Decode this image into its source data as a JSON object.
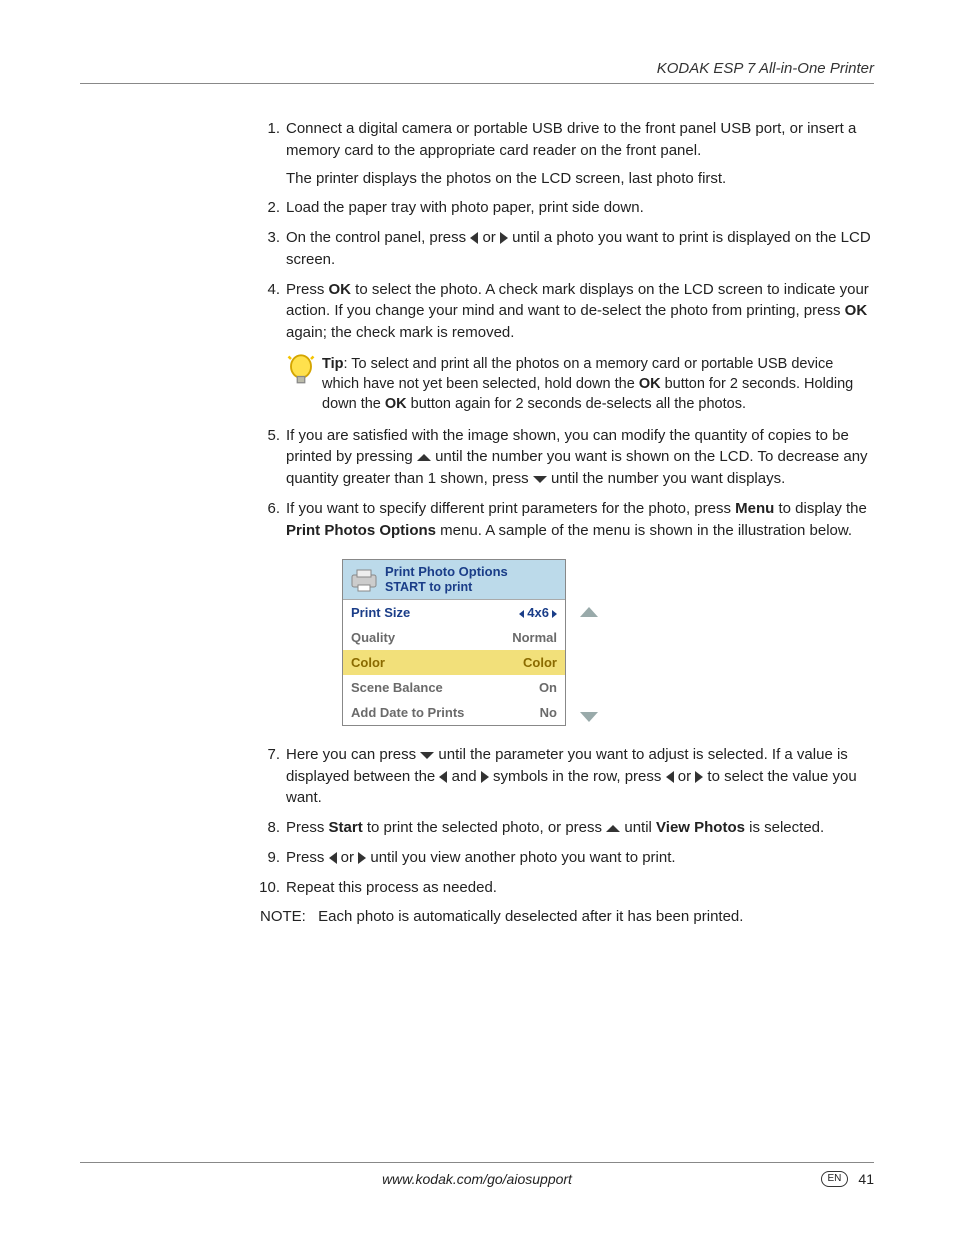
{
  "header": {
    "title": "KODAK ESP 7 All-in-One Printer"
  },
  "steps": [
    {
      "n": "1.",
      "paras": [
        "Connect a digital camera or portable USB drive to the front panel USB port, or insert a memory card to the appropriate card reader on the front panel.",
        "The printer displays the photos on the LCD screen, last photo first."
      ]
    },
    {
      "n": "2.",
      "paras": [
        "Load the paper tray with photo paper, print side down."
      ]
    },
    {
      "n": "3.",
      "segments": [
        {
          "t": "text",
          "v": "On the control panel, press "
        },
        {
          "t": "icon",
          "v": "left"
        },
        {
          "t": "text",
          "v": " or "
        },
        {
          "t": "icon",
          "v": "right"
        },
        {
          "t": "text",
          "v": " until a photo you want to print is displayed on the LCD screen."
        }
      ]
    },
    {
      "n": "4.",
      "segments": [
        {
          "t": "text",
          "v": "Press "
        },
        {
          "t": "bold",
          "v": "OK"
        },
        {
          "t": "text",
          "v": " to select the photo. A check mark displays on the LCD screen to indicate your action. If you change your mind and want to de-select the photo from printing, press "
        },
        {
          "t": "bold",
          "v": "OK"
        },
        {
          "t": "text",
          "v": " again; the check mark is removed."
        }
      ],
      "tip": {
        "label": "Tip",
        "segments": [
          {
            "t": "text",
            "v": ": To select and print all the photos on a memory card or portable USB device which have not yet been selected, hold down the "
          },
          {
            "t": "bold",
            "v": "OK"
          },
          {
            "t": "text",
            "v": " button for 2 seconds. Holding down the "
          },
          {
            "t": "bold",
            "v": "OK"
          },
          {
            "t": "text",
            "v": " button again for 2 seconds de-selects all the photos."
          }
        ]
      }
    },
    {
      "n": "5.",
      "segments": [
        {
          "t": "text",
          "v": "If you are satisfied with the image shown, you can modify the quantity of copies to be printed by pressing "
        },
        {
          "t": "icon",
          "v": "up"
        },
        {
          "t": "text",
          "v": " until the number you want is shown on the LCD. To decrease any quantity greater than 1 shown, press "
        },
        {
          "t": "icon",
          "v": "down"
        },
        {
          "t": "text",
          "v": " until the number you want displays."
        }
      ]
    },
    {
      "n": "6.",
      "segments": [
        {
          "t": "text",
          "v": "If you want to specify different print parameters for the photo, press "
        },
        {
          "t": "bold",
          "v": "Menu"
        },
        {
          "t": "text",
          "v": " to display the "
        },
        {
          "t": "bold",
          "v": "Print Photos Options"
        },
        {
          "t": "text",
          "v": " menu. A sample of the menu is shown in the illustration below."
        }
      ]
    },
    {
      "n": "7.",
      "segments": [
        {
          "t": "text",
          "v": "Here you can press "
        },
        {
          "t": "icon",
          "v": "down"
        },
        {
          "t": "text",
          "v": " until the parameter you want to adjust is selected. If a value is displayed between the "
        },
        {
          "t": "icon",
          "v": "left"
        },
        {
          "t": "text",
          "v": " and "
        },
        {
          "t": "icon",
          "v": "right"
        },
        {
          "t": "text",
          "v": " symbols in the row, press "
        },
        {
          "t": "icon",
          "v": "left"
        },
        {
          "t": "text",
          "v": " or "
        },
        {
          "t": "icon",
          "v": "right"
        },
        {
          "t": "text",
          "v": " to select the value you want."
        }
      ]
    },
    {
      "n": "8.",
      "segments": [
        {
          "t": "text",
          "v": "Press "
        },
        {
          "t": "bold",
          "v": "Start"
        },
        {
          "t": "text",
          "v": " to print the selected photo, or press "
        },
        {
          "t": "icon",
          "v": "up"
        },
        {
          "t": "text",
          "v": " until "
        },
        {
          "t": "bold",
          "v": "View Photos"
        },
        {
          "t": "text",
          "v": " is selected."
        }
      ]
    },
    {
      "n": "9.",
      "segments": [
        {
          "t": "text",
          "v": "Press "
        },
        {
          "t": "icon",
          "v": "left"
        },
        {
          "t": "text",
          "v": " or "
        },
        {
          "t": "icon",
          "v": "right"
        },
        {
          "t": "text",
          "v": " until you view another photo you want to print."
        }
      ]
    },
    {
      "n": "10.",
      "paras": [
        "Repeat this process as needed."
      ]
    }
  ],
  "menu": {
    "title1": "Print Photo Options",
    "title2": "START to print",
    "rows": [
      {
        "label": "Print Size",
        "value": "4x6",
        "arrows": true,
        "cls": "top"
      },
      {
        "label": "Quality",
        "value": "Normal",
        "arrows": false,
        "cls": ""
      },
      {
        "label": "Color",
        "value": "Color",
        "arrows": false,
        "cls": "sel"
      },
      {
        "label": "Scene Balance",
        "value": "On",
        "arrows": false,
        "cls": ""
      },
      {
        "label": "Add Date to Prints",
        "value": "No",
        "arrows": false,
        "cls": ""
      }
    ]
  },
  "note": {
    "label": "NOTE:",
    "text": "Each photo is automatically deselected after it has been printed."
  },
  "footer": {
    "url": "www.kodak.com/go/aiosupport",
    "lang": "EN",
    "page": "41"
  }
}
